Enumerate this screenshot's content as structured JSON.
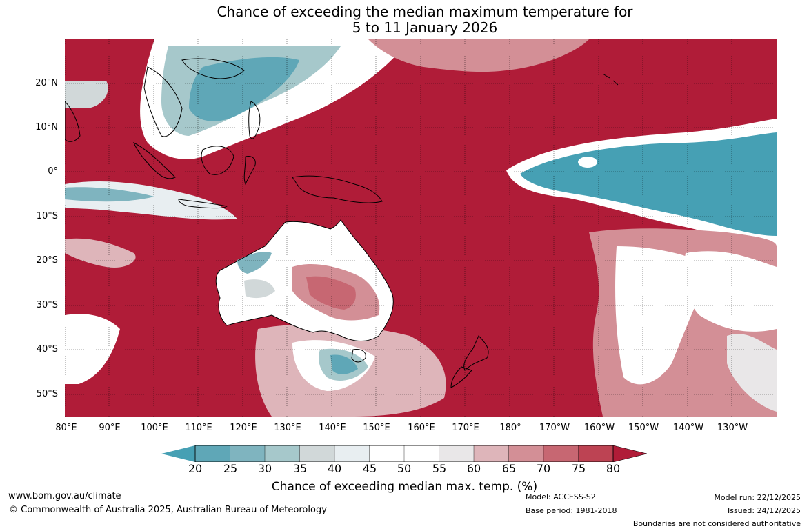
{
  "title": {
    "line1": "Chance of exceeding the median maximum temperature for",
    "line2": "5 to 11 January 2026"
  },
  "map": {
    "latitude_labels": [
      "20°N",
      "10°N",
      "0°",
      "10°S",
      "20°S",
      "30°S",
      "40°S",
      "50°S"
    ],
    "longitude_labels": [
      "80°E",
      "90°E",
      "100°E",
      "110°E",
      "120°E",
      "130°E",
      "140°E",
      "150°E",
      "160°E",
      "170°E",
      "180°",
      "170°W",
      "160°W",
      "150°W",
      "140°W",
      "130°W"
    ],
    "colors": {
      "above_80": "#b01c38",
      "below_20": "#46a0b4",
      "neutral": "#ffffff"
    }
  },
  "colorbar": {
    "ticks": [
      "20",
      "25",
      "30",
      "35",
      "40",
      "45",
      "50",
      "55",
      "60",
      "65",
      "70",
      "75",
      "80"
    ],
    "bin_colors": [
      "#5fa7b7",
      "#7fb4bf",
      "#a6c8cb",
      "#d1d8d9",
      "#e8eef1",
      "#ffffff",
      "#ffffff",
      "#e9e7e8",
      "#deb5ba",
      "#d38f96",
      "#c76772",
      "#bd4353"
    ],
    "low_color": "#46a0b4",
    "high_color": "#b01c38",
    "label": "Chance of exceeding median max. temp. (%)"
  },
  "footer": {
    "website": "www.bom.gov.au/climate",
    "copyright": "© Commonwealth of Australia 2025, Australian Bureau of Meteorology",
    "model": "Model: ACCESS-S2",
    "base_period": "Base period: 1981-2018",
    "model_run": "Model run: 22/12/2025",
    "issued": "Issued: 24/12/2025",
    "disclaimer": "Boundaries are not considered authoritative"
  }
}
